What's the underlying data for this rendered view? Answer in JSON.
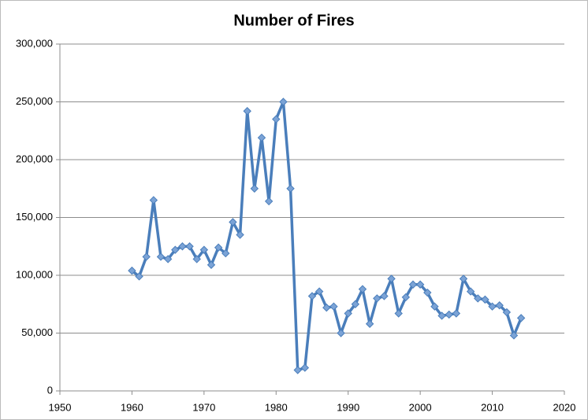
{
  "chart_data": {
    "type": "line",
    "title": "Number of Fires",
    "x": [
      1960,
      1961,
      1962,
      1963,
      1964,
      1965,
      1966,
      1967,
      1968,
      1969,
      1970,
      1971,
      1972,
      1973,
      1974,
      1975,
      1976,
      1977,
      1978,
      1979,
      1980,
      1981,
      1982,
      1983,
      1984,
      1985,
      1986,
      1987,
      1988,
      1989,
      1990,
      1991,
      1992,
      1993,
      1994,
      1995,
      1996,
      1997,
      1998,
      1999,
      2000,
      2001,
      2002,
      2003,
      2004,
      2005,
      2006,
      2007,
      2008,
      2009,
      2010,
      2011,
      2012,
      2013,
      2014
    ],
    "values": [
      104000,
      99000,
      116000,
      165000,
      116000,
      114000,
      122000,
      125000,
      125000,
      114000,
      122000,
      109000,
      124000,
      119000,
      146000,
      135000,
      242000,
      175000,
      219000,
      164000,
      235000,
      250000,
      175000,
      18000,
      20000,
      82000,
      86000,
      72000,
      73000,
      50000,
      67000,
      75000,
      88000,
      58000,
      80000,
      82000,
      97000,
      67000,
      81000,
      92000,
      92000,
      85000,
      73000,
      65000,
      66000,
      67000,
      97000,
      86000,
      80000,
      79000,
      73000,
      74000,
      68000,
      48000,
      63000
    ],
    "color": "#4a7ebb",
    "xlim": [
      1950,
      2020
    ],
    "xticks": [
      1950,
      1960,
      1970,
      1980,
      1990,
      2000,
      2010,
      2020
    ],
    "ylim": [
      0,
      300000
    ],
    "yticks": [
      0,
      {
        "value": 50000,
        "label": "50,000"
      },
      {
        "value": 100000,
        "label": "100,000"
      },
      {
        "value": 150000,
        "label": "150,000"
      },
      {
        "value": 200000,
        "label": "200,000"
      },
      {
        "value": 250000,
        "label": "250,000"
      },
      {
        "value": 300000,
        "label": "300,000"
      }
    ],
    "grid": true
  }
}
